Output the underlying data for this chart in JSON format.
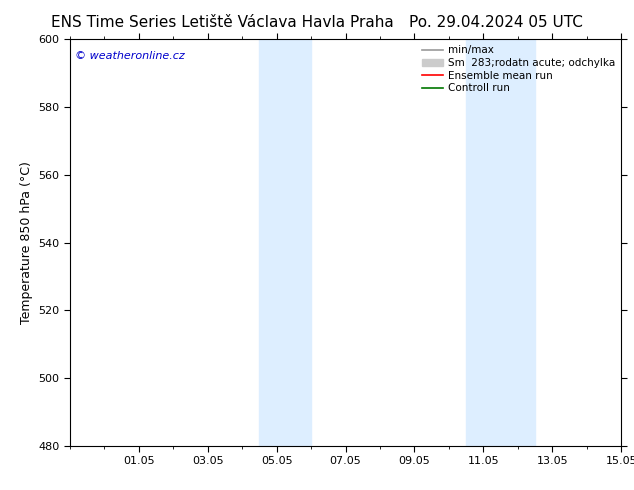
{
  "title_left": "ENS Time Series Letiště Václava Havla Praha",
  "title_right": "Po. 29.04.2024 05 UTC",
  "ylabel": "Temperature 850 hPa (°C)",
  "watermark": "© weatheronline.cz",
  "watermark_color": "#0000cc",
  "ylim": [
    480,
    600
  ],
  "yticks": [
    480,
    500,
    520,
    540,
    560,
    580,
    600
  ],
  "xlim": [
    0,
    16
  ],
  "xtick_labels": [
    "01.05",
    "03.05",
    "05.05",
    "07.05",
    "09.05",
    "11.05",
    "13.05",
    "15.05"
  ],
  "xtick_positions": [
    2,
    4,
    6,
    8,
    10,
    12,
    14,
    16
  ],
  "x_start_label": "15.05",
  "shaded_bands": [
    {
      "xstart": 5.5,
      "xend": 7.0,
      "color": "#ddeeff"
    },
    {
      "xstart": 11.5,
      "xend": 13.5,
      "color": "#ddeeff"
    }
  ],
  "legend_entries": [
    {
      "label": "min/max",
      "color": "#999999",
      "lw": 1.2,
      "patch": false
    },
    {
      "label": "Sm  283;rodatn acute; odchylka",
      "color": "#cccccc",
      "lw": 6,
      "patch": true
    },
    {
      "label": "Ensemble mean run",
      "color": "#ff0000",
      "lw": 1.2,
      "patch": false
    },
    {
      "label": "Controll run",
      "color": "#007700",
      "lw": 1.2,
      "patch": false
    }
  ],
  "bg_color": "#ffffff",
  "spine_color": "#000000",
  "title_fontsize": 11,
  "tick_fontsize": 8,
  "ylabel_fontsize": 9,
  "legend_fontsize": 7.5,
  "watermark_fontsize": 8
}
